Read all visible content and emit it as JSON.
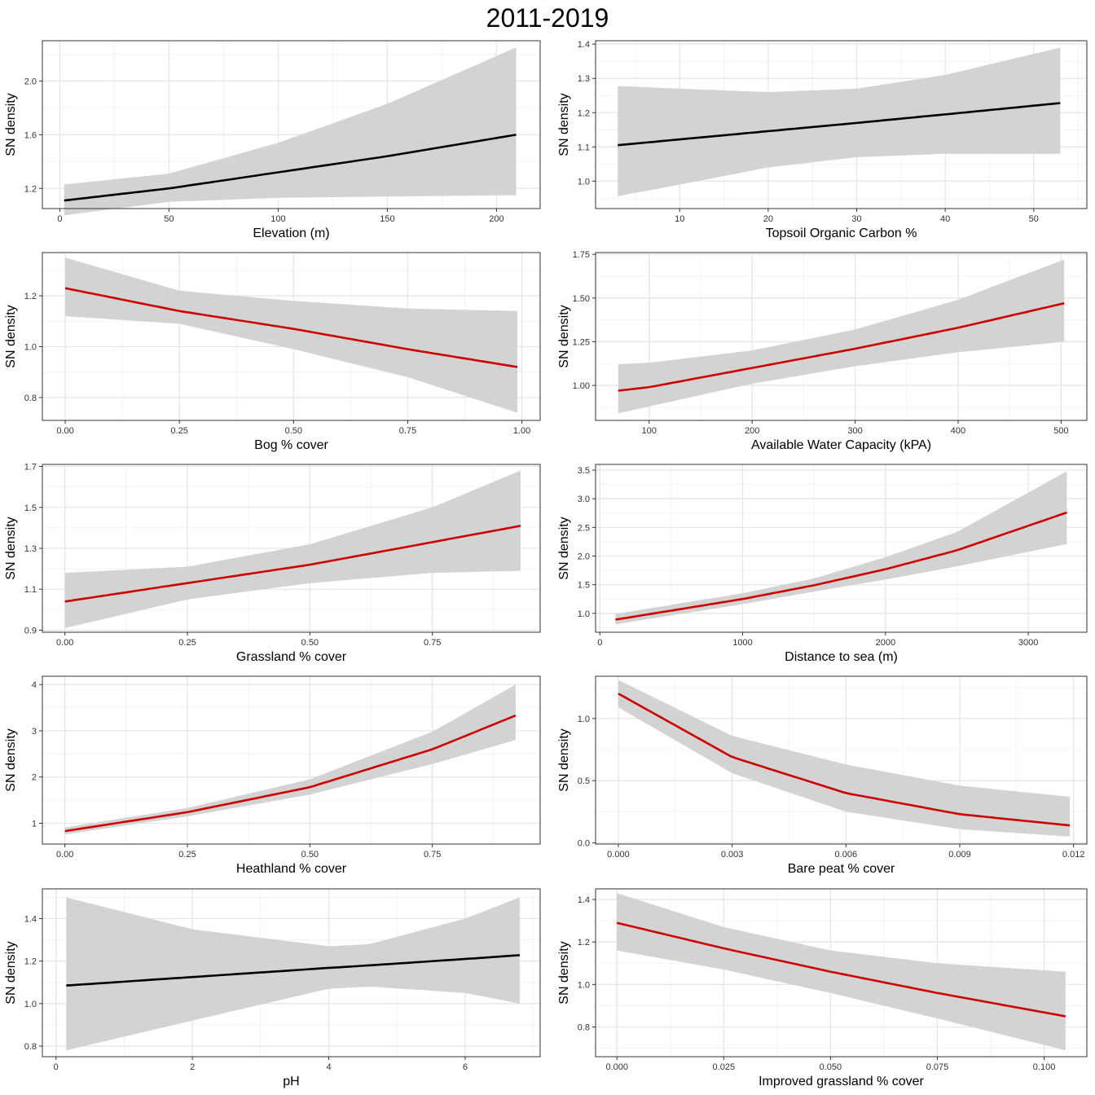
{
  "title": "2011-2019",
  "colors": {
    "significant": "#cc0000",
    "not_significant": "#000000",
    "band": "#d3d3d3"
  },
  "chart_data": [
    {
      "type": "line",
      "xlabel": "Elevation (m)",
      "ylabel": "SN density",
      "line_color": "black",
      "xlim": [
        -8,
        220
      ],
      "ylim": [
        1.05,
        2.3
      ],
      "xticks": [
        0,
        50,
        100,
        150,
        200
      ],
      "xtick_labels": [
        "0",
        "50",
        "100",
        "150",
        "200"
      ],
      "yticks": [
        1.2,
        1.6,
        2.0
      ],
      "ytick_labels": [
        "1.2",
        "1.6",
        "2.0"
      ],
      "x": [
        2,
        50,
        100,
        150,
        209
      ],
      "y": [
        1.11,
        1.2,
        1.32,
        1.44,
        1.6
      ],
      "lower": [
        1.0,
        1.1,
        1.13,
        1.14,
        1.15
      ],
      "upper": [
        1.23,
        1.31,
        1.54,
        1.83,
        2.25
      ]
    },
    {
      "type": "line",
      "xlabel": "Topsoil Organic Carbon %",
      "ylabel": "SN density",
      "line_color": "black",
      "xlim": [
        0.5,
        56
      ],
      "ylim": [
        0.92,
        1.41
      ],
      "xticks": [
        10,
        20,
        30,
        40,
        50
      ],
      "xtick_labels": [
        "10",
        "20",
        "30",
        "40",
        "50"
      ],
      "yticks": [
        1.0,
        1.1,
        1.2,
        1.3,
        1.4
      ],
      "ytick_labels": [
        "1.0",
        "1.1",
        "1.2",
        "1.3",
        "1.4"
      ],
      "x": [
        3,
        10,
        20,
        30,
        40,
        53
      ],
      "y": [
        1.105,
        1.122,
        1.146,
        1.17,
        1.195,
        1.228
      ],
      "lower": [
        0.956,
        0.99,
        1.04,
        1.07,
        1.08,
        1.08
      ],
      "upper": [
        1.278,
        1.27,
        1.26,
        1.27,
        1.31,
        1.39
      ]
    },
    {
      "type": "line",
      "xlabel": "Bog % cover",
      "ylabel": "SN density",
      "line_color": "red",
      "xlim": [
        -0.05,
        1.04
      ],
      "ylim": [
        0.71,
        1.37
      ],
      "xticks": [
        0,
        0.25,
        0.5,
        0.75,
        1.0
      ],
      "xtick_labels": [
        "0.00",
        "0.25",
        "0.50",
        "0.75",
        "1.00"
      ],
      "yticks": [
        0.8,
        1.0,
        1.2
      ],
      "ytick_labels": [
        "0.8",
        "1.0",
        "1.2"
      ],
      "x": [
        0,
        0.25,
        0.5,
        0.75,
        0.99
      ],
      "y": [
        1.23,
        1.14,
        1.07,
        0.99,
        0.92
      ],
      "lower": [
        1.12,
        1.09,
        0.99,
        0.88,
        0.74
      ],
      "upper": [
        1.35,
        1.22,
        1.18,
        1.15,
        1.14
      ]
    },
    {
      "type": "line",
      "xlabel": "Available Water Capacity (kPA)",
      "ylabel": "SN density",
      "line_color": "red",
      "xlim": [
        48,
        525
      ],
      "ylim": [
        0.8,
        1.76
      ],
      "xticks": [
        100,
        200,
        300,
        400,
        500
      ],
      "xtick_labels": [
        "100",
        "200",
        "300",
        "400",
        "500"
      ],
      "yticks": [
        1.0,
        1.25,
        1.5,
        1.75
      ],
      "ytick_labels": [
        "1.00",
        "1.25",
        "1.50",
        "1.75"
      ],
      "x": [
        70,
        100,
        200,
        300,
        400,
        503
      ],
      "y": [
        0.97,
        0.99,
        1.1,
        1.21,
        1.33,
        1.47
      ],
      "lower": [
        0.84,
        0.88,
        1.01,
        1.11,
        1.19,
        1.25
      ],
      "upper": [
        1.12,
        1.13,
        1.2,
        1.32,
        1.49,
        1.72
      ]
    },
    {
      "type": "line",
      "xlabel": "Grassland % cover",
      "ylabel": "SN density",
      "line_color": "red",
      "xlim": [
        -0.046,
        0.97
      ],
      "ylim": [
        0.89,
        1.71
      ],
      "xticks": [
        0,
        0.25,
        0.5,
        0.75
      ],
      "xtick_labels": [
        "0.00",
        "0.25",
        "0.50",
        "0.75"
      ],
      "yticks": [
        0.9,
        1.1,
        1.3,
        1.5,
        1.7
      ],
      "ytick_labels": [
        "0.9",
        "1.1",
        "1.3",
        "1.5",
        "1.7"
      ],
      "x": [
        0,
        0.25,
        0.5,
        0.75,
        0.93
      ],
      "y": [
        1.04,
        1.13,
        1.22,
        1.33,
        1.41
      ],
      "lower": [
        0.91,
        1.05,
        1.13,
        1.18,
        1.19
      ],
      "upper": [
        1.18,
        1.21,
        1.32,
        1.5,
        1.68
      ]
    },
    {
      "type": "line",
      "xlabel": "Distance to sea (m)",
      "ylabel": "SN density",
      "line_color": "red",
      "xlim": [
        -30,
        3410
      ],
      "ylim": [
        0.67,
        3.6
      ],
      "xticks": [
        0,
        1000,
        2000,
        3000
      ],
      "xtick_labels": [
        "0",
        "1000",
        "2000",
        "3000"
      ],
      "yticks": [
        1.0,
        1.5,
        2.0,
        2.5,
        3.0,
        3.5
      ],
      "ytick_labels": [
        "1.0",
        "1.5",
        "2.0",
        "2.5",
        "3.0",
        "3.5"
      ],
      "x": [
        110,
        1000,
        1500,
        2000,
        2500,
        3270
      ],
      "y": [
        0.89,
        1.25,
        1.49,
        1.77,
        2.1,
        2.76
      ],
      "lower": [
        0.81,
        1.16,
        1.38,
        1.59,
        1.82,
        2.21
      ],
      "upper": [
        0.99,
        1.35,
        1.61,
        1.98,
        2.42,
        3.48
      ]
    },
    {
      "type": "line",
      "xlabel": "Heathland % cover",
      "ylabel": "SN density",
      "line_color": "red",
      "xlim": [
        -0.046,
        0.97
      ],
      "ylim": [
        0.55,
        4.18
      ],
      "xticks": [
        0,
        0.25,
        0.5,
        0.75
      ],
      "xtick_labels": [
        "0.00",
        "0.25",
        "0.50",
        "0.75"
      ],
      "yticks": [
        1,
        2,
        3,
        4
      ],
      "ytick_labels": [
        "1",
        "2",
        "3",
        "4"
      ],
      "x": [
        0,
        0.25,
        0.5,
        0.75,
        0.92
      ],
      "y": [
        0.83,
        1.24,
        1.78,
        2.6,
        3.33
      ],
      "lower": [
        0.76,
        1.15,
        1.62,
        2.28,
        2.8
      ],
      "upper": [
        0.91,
        1.33,
        1.95,
        2.98,
        4.0
      ]
    },
    {
      "type": "line",
      "xlabel": "Bare peat % cover",
      "ylabel": "SN density",
      "line_color": "red",
      "xlim": [
        -0.0006,
        0.01235
      ],
      "ylim": [
        -0.01,
        1.34
      ],
      "xticks": [
        0,
        0.003,
        0.006,
        0.009,
        0.012
      ],
      "xtick_labels": [
        "0.000",
        "0.003",
        "0.006",
        "0.009",
        "0.012"
      ],
      "yticks": [
        0,
        0.5,
        1.0
      ],
      "ytick_labels": [
        "0.0",
        "0.5",
        "1.0"
      ],
      "x": [
        0,
        0.003,
        0.006,
        0.009,
        0.0119
      ],
      "y": [
        1.2,
        0.69,
        0.4,
        0.23,
        0.14
      ],
      "lower": [
        1.09,
        0.56,
        0.25,
        0.11,
        0.05
      ],
      "upper": [
        1.31,
        0.86,
        0.63,
        0.46,
        0.37
      ]
    },
    {
      "type": "line",
      "xlabel": "pH",
      "ylabel": "SN density",
      "line_color": "black",
      "xlim": [
        -0.2,
        7.1
      ],
      "ylim": [
        0.75,
        1.54
      ],
      "xticks": [
        0,
        2,
        4,
        6
      ],
      "xtick_labels": [
        "0",
        "2",
        "4",
        "6"
      ],
      "yticks": [
        0.8,
        1.0,
        1.2,
        1.4
      ],
      "ytick_labels": [
        "0.8",
        "1.0",
        "1.2",
        "1.4"
      ],
      "x": [
        0.15,
        2,
        4,
        4.6,
        6,
        6.8
      ],
      "y": [
        1.085,
        1.125,
        1.168,
        1.18,
        1.21,
        1.228
      ],
      "lower": [
        0.78,
        0.92,
        1.07,
        1.08,
        1.05,
        1.0
      ],
      "upper": [
        1.5,
        1.35,
        1.27,
        1.28,
        1.4,
        1.5
      ]
    },
    {
      "type": "line",
      "xlabel": "Improved grassland % cover",
      "ylabel": "SN density",
      "line_color": "red",
      "xlim": [
        -0.005,
        0.11
      ],
      "ylim": [
        0.66,
        1.45
      ],
      "xticks": [
        0,
        0.025,
        0.05,
        0.075,
        0.1
      ],
      "xtick_labels": [
        "0.000",
        "0.025",
        "0.050",
        "0.075",
        "0.100"
      ],
      "yticks": [
        0.8,
        1.0,
        1.2,
        1.4
      ],
      "ytick_labels": [
        "0.8",
        "1.0",
        "1.2",
        "1.4"
      ],
      "x": [
        0,
        0.025,
        0.05,
        0.075,
        0.105
      ],
      "y": [
        1.29,
        1.17,
        1.06,
        0.96,
        0.85
      ],
      "lower": [
        1.16,
        1.07,
        0.96,
        0.84,
        0.69
      ],
      "upper": [
        1.43,
        1.27,
        1.16,
        1.1,
        1.06
      ]
    }
  ]
}
